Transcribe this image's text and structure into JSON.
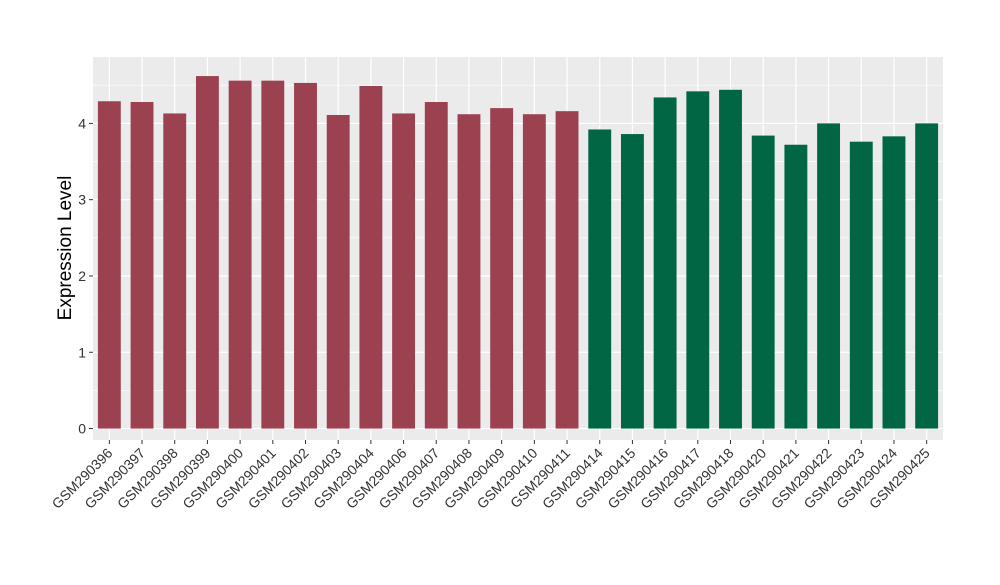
{
  "chart_data": {
    "type": "bar",
    "ylabel": "Expression Level",
    "ylim": [
      -0.15,
      4.87
    ],
    "yticks": [
      0,
      1,
      2,
      3,
      4
    ],
    "grid": true,
    "categories": [
      "GSM290396",
      "GSM290397",
      "GSM290398",
      "GSM290399",
      "GSM290400",
      "GSM290401",
      "GSM290402",
      "GSM290403",
      "GSM290404",
      "GSM290406",
      "GSM290407",
      "GSM290408",
      "GSM290409",
      "GSM290410",
      "GSM290411",
      "GSM290414",
      "GSM290415",
      "GSM290416",
      "GSM290417",
      "GSM290418",
      "GSM290420",
      "GSM290421",
      "GSM290422",
      "GSM290423",
      "GSM290424",
      "GSM290425"
    ],
    "values": [
      4.29,
      4.28,
      4.13,
      4.62,
      4.56,
      4.56,
      4.53,
      4.11,
      4.49,
      4.13,
      4.28,
      4.12,
      4.2,
      4.12,
      4.16,
      3.92,
      3.86,
      4.34,
      4.42,
      4.44,
      3.84,
      3.72,
      4.0,
      3.76,
      3.83,
      4.0
    ],
    "bar_colors": [
      "#9b4150",
      "#9b4150",
      "#9b4150",
      "#9b4150",
      "#9b4150",
      "#9b4150",
      "#9b4150",
      "#9b4150",
      "#9b4150",
      "#9b4150",
      "#9b4150",
      "#9b4150",
      "#9b4150",
      "#9b4150",
      "#9b4150",
      "#006644",
      "#006644",
      "#006644",
      "#006644",
      "#006644",
      "#006644",
      "#006644",
      "#006644",
      "#006644",
      "#006644",
      "#006644"
    ],
    "panel_background": "#ebebeb",
    "grid_color": "#ffffff"
  }
}
